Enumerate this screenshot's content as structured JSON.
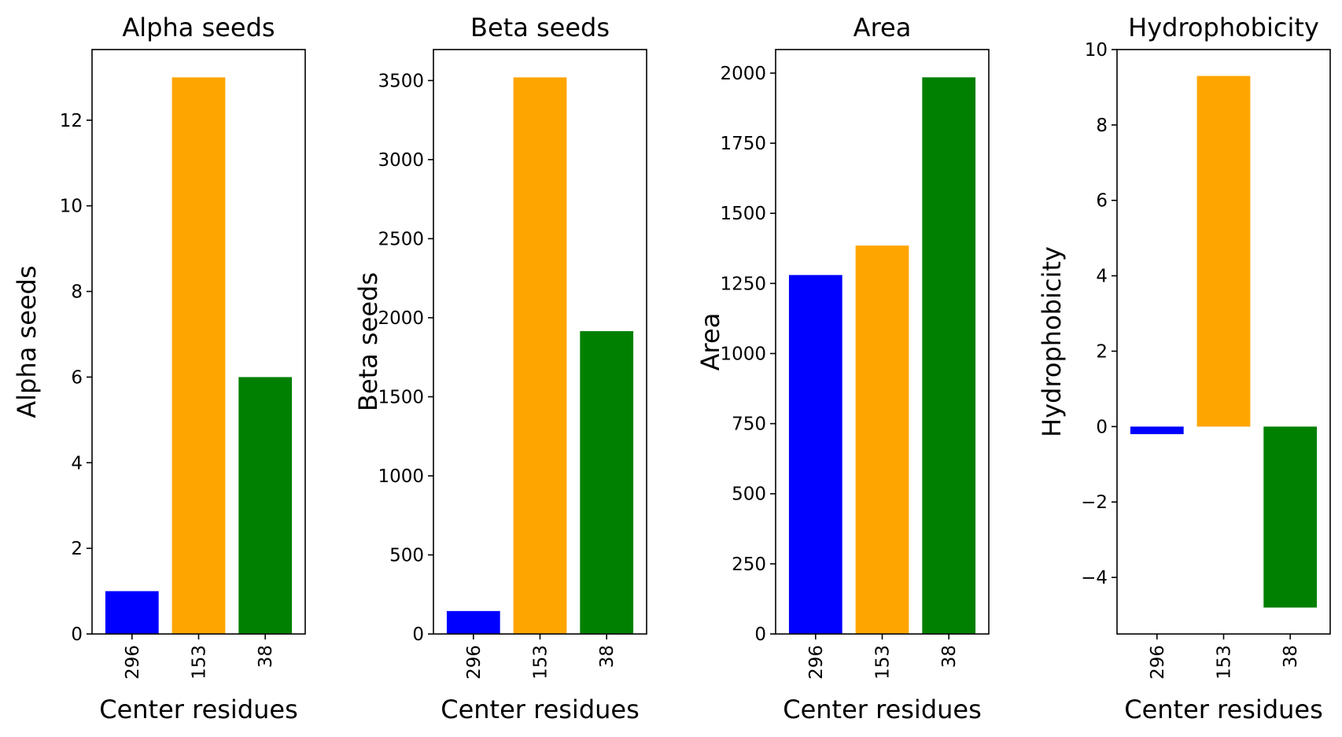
{
  "colors": {
    "296": "#0000ff",
    "153": "#ffa500",
    "38": "#008000"
  },
  "chart_data": [
    {
      "type": "bar",
      "title": "Alpha seeds",
      "xlabel": "Center residues",
      "ylabel": "Alpha seeds",
      "categories": [
        "296",
        "153",
        "38"
      ],
      "values": [
        1,
        13,
        6
      ],
      "ylim": [
        0,
        13.65
      ],
      "yticks": [
        0,
        2,
        4,
        6,
        8,
        10,
        12
      ],
      "ytick_labels": [
        "0",
        "2",
        "4",
        "6",
        "8",
        "10",
        "12"
      ],
      "grid": false
    },
    {
      "type": "bar",
      "title": "Beta seeds",
      "xlabel": "Center residues",
      "ylabel": "Beta seeds",
      "categories": [
        "296",
        "153",
        "38"
      ],
      "values": [
        145,
        3520,
        1915
      ],
      "ylim": [
        0,
        3696
      ],
      "yticks": [
        0,
        500,
        1000,
        1500,
        2000,
        2500,
        3000,
        3500
      ],
      "ytick_labels": [
        "0",
        "500",
        "1000",
        "1500",
        "2000",
        "2500",
        "3000",
        "3500"
      ],
      "grid": false
    },
    {
      "type": "bar",
      "title": "Area",
      "xlabel": "Center residues",
      "ylabel": "Area",
      "categories": [
        "296",
        "153",
        "38"
      ],
      "values": [
        1280,
        1385,
        1985
      ],
      "ylim": [
        0,
        2084
      ],
      "yticks": [
        0,
        250,
        500,
        750,
        1000,
        1250,
        1500,
        1750,
        2000
      ],
      "ytick_labels": [
        "0",
        "250",
        "500",
        "750",
        "1000",
        "1250",
        "1500",
        "1750",
        "2000"
      ],
      "grid": false
    },
    {
      "type": "bar",
      "title": "Hydrophobicity",
      "xlabel": "Center residues",
      "ylabel": "Hydrophobicity",
      "categories": [
        "296",
        "153",
        "38"
      ],
      "values": [
        -0.2,
        9.3,
        -4.8
      ],
      "ylim": [
        -5.5,
        10
      ],
      "yticks": [
        -4,
        -2,
        0,
        2,
        4,
        6,
        8,
        10
      ],
      "ytick_labels": [
        "−4",
        "−2",
        "0",
        "2",
        "4",
        "6",
        "8",
        "10"
      ],
      "grid": false
    }
  ]
}
